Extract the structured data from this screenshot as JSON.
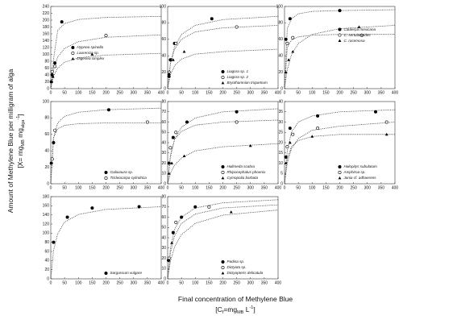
{
  "y_label": [
    [
      {
        "text": "Amount of Methylene Blue per milligram of alga"
      }
    ],
    [
      {
        "text": "[X= mg"
      },
      {
        "text": "MB",
        "script": "sub"
      },
      {
        "text": " mg"
      },
      {
        "text": "alga",
        "script": "sub"
      },
      {
        "text": "-1",
        "script": "sup"
      },
      {
        "text": "]"
      }
    ]
  ],
  "x_label": [
    [
      {
        "text": "Final concentration of Methylene Blue"
      }
    ],
    [
      {
        "text": "[C"
      },
      {
        "text": "f",
        "script": "sub"
      },
      {
        "text": "=mg"
      },
      {
        "text": "MB",
        "script": "sub"
      },
      {
        "text": " L"
      },
      {
        "text": "-1",
        "script": "sup"
      },
      {
        "text": "]"
      }
    ]
  ],
  "chart_data": [
    {
      "type": "scatter",
      "xlim": [
        0,
        400
      ],
      "xticks": [
        0,
        50,
        100,
        150,
        200,
        250,
        300,
        350,
        400
      ],
      "ylim": [
        0,
        240
      ],
      "yticks": [
        0,
        20,
        40,
        60,
        80,
        100,
        120,
        140,
        160,
        180,
        200,
        220,
        240
      ],
      "legend": "center-left",
      "fit_x": [
        0,
        10,
        25,
        50,
        100,
        200,
        400
      ],
      "series": [
        {
          "name": "Hypnea spinella",
          "marker": "circle-filled",
          "color": "#000000",
          "x": [
            2,
            5,
            15,
            40
          ],
          "values": [
            20,
            40,
            75,
            195
          ],
          "fit": [
            0,
            86,
            170,
            190,
            202,
            208,
            211
          ]
        },
        {
          "name": "Laurencia sp.",
          "marker": "circle-open",
          "color": "#000000",
          "x": [
            5,
            15,
            200
          ],
          "values": [
            50,
            65,
            155
          ],
          "fit": [
            0,
            55,
            92,
            118,
            137,
            150,
            157
          ]
        },
        {
          "name": "Digenea simplex",
          "marker": "triangle",
          "color": "#000000",
          "x": [
            3,
            8,
            150
          ],
          "values": [
            20,
            35,
            100
          ],
          "fit": [
            0,
            36,
            60,
            77,
            90,
            98,
            103
          ]
        }
      ]
    },
    {
      "type": "scatter",
      "xlim": [
        0,
        400
      ],
      "xticks": [
        0,
        50,
        100,
        150,
        200,
        250,
        300,
        350,
        400
      ],
      "ylim": [
        0,
        100
      ],
      "yticks": [
        0,
        20,
        40,
        60,
        80,
        100
      ],
      "legend": "lower-right",
      "fit_x": [
        0,
        10,
        25,
        50,
        100,
        200,
        400
      ],
      "series": [
        {
          "name": "Liagora sp. 1",
          "marker": "circle-filled",
          "color": "#000000",
          "x": [
            5,
            10,
            25,
            160
          ],
          "values": [
            15,
            35,
            55,
            85
          ],
          "fit": [
            0,
            31,
            51,
            66,
            77,
            84,
            88
          ]
        },
        {
          "name": "Liagora sp. 2",
          "marker": "circle-open",
          "color": "#000000",
          "x": [
            5,
            30,
            250
          ],
          "values": [
            20,
            55,
            75
          ],
          "fit": [
            0,
            30,
            48,
            60,
            69,
            74,
            77
          ]
        },
        {
          "name": "Bryothamnion triquetrum",
          "marker": "triangle",
          "color": "#000000",
          "x": [
            5,
            20,
            60
          ],
          "values": [
            18,
            35,
            45
          ],
          "fit": [
            0,
            17,
            28,
            36,
            42,
            45,
            48
          ]
        }
      ]
    },
    {
      "type": "scatter",
      "xlim": [
        0,
        400
      ],
      "xticks": [
        0,
        50,
        100,
        150,
        200,
        250,
        300,
        350,
        400
      ],
      "ylim": [
        0,
        100
      ],
      "yticks": [
        0,
        20,
        40,
        60,
        80,
        100
      ],
      "legend": "center-right",
      "fit_x": [
        0,
        10,
        25,
        50,
        100,
        200,
        400
      ],
      "series": [
        {
          "name": "Caulerpa mexicana",
          "marker": "circle-filled",
          "color": "#000000",
          "x": [
            5,
            20,
            200
          ],
          "values": [
            60,
            85,
            95
          ],
          "fit": [
            0,
            73,
            85,
            91,
            94,
            95,
            96
          ]
        },
        {
          "name": "C. sertularioides",
          "marker": "circle-open",
          "color": "#000000",
          "x": [
            10,
            30,
            280
          ],
          "values": [
            55,
            62,
            65
          ],
          "fit": [
            0,
            50,
            59,
            63,
            65,
            66,
            66
          ]
        },
        {
          "name": "C. racemosa",
          "marker": "triangle",
          "color": "#000000",
          "x": [
            5,
            15,
            30,
            270
          ],
          "values": [
            20,
            35,
            45,
            75
          ],
          "fit": [
            0,
            23,
            41,
            55,
            66,
            73,
            77
          ]
        }
      ]
    },
    {
      "type": "scatter",
      "xlim": [
        0,
        400
      ],
      "xticks": [
        0,
        50,
        100,
        150,
        200,
        250,
        300,
        350,
        400
      ],
      "ylim": [
        0,
        100
      ],
      "yticks": [
        0,
        20,
        40,
        60,
        80,
        100
      ],
      "legend": "lower-right",
      "fit_x": [
        0,
        10,
        25,
        50,
        100,
        200,
        400
      ],
      "series": [
        {
          "name": "Galaxaura sp.",
          "marker": "circle-filled",
          "color": "#000000",
          "x": [
            2,
            10,
            210
          ],
          "values": [
            25,
            50,
            90
          ],
          "fit": [
            0,
            56,
            74,
            82,
            87,
            90,
            92
          ]
        },
        {
          "name": "Tricleocarpa cylindrica",
          "marker": "circle-open",
          "color": "#000000",
          "x": [
            5,
            15,
            350
          ],
          "values": [
            30,
            65,
            75
          ],
          "fit": [
            0,
            56,
            67,
            71,
            73,
            74,
            74
          ]
        }
      ]
    },
    {
      "type": "scatter",
      "xlim": [
        0,
        400
      ],
      "xticks": [
        0,
        50,
        100,
        150,
        200,
        250,
        300,
        350,
        400
      ],
      "ylim": [
        0,
        80
      ],
      "yticks": [
        0,
        10,
        20,
        30,
        40,
        50,
        60,
        70,
        80
      ],
      "legend": "lower-right",
      "fit_x": [
        0,
        10,
        25,
        50,
        100,
        200,
        400
      ],
      "series": [
        {
          "name": "Halimeda scabra",
          "marker": "circle-filled",
          "color": "#000000",
          "x": [
            5,
            20,
            70,
            250
          ],
          "values": [
            20,
            45,
            60,
            70
          ],
          "fit": [
            0,
            26,
            43,
            55,
            64,
            70,
            73
          ]
        },
        {
          "name": "Rhipocephalus phoenix",
          "marker": "circle-open",
          "color": "#000000",
          "x": [
            10,
            30,
            250
          ],
          "values": [
            35,
            50,
            60
          ],
          "fit": [
            0,
            28,
            43,
            51,
            57,
            60,
            62
          ]
        },
        {
          "name": "Cymopolia barbata",
          "marker": "triangle",
          "color": "#000000",
          "x": [
            5,
            15,
            60,
            300
          ],
          "values": [
            10,
            20,
            27,
            37
          ],
          "fit": [
            0,
            10,
            18,
            25,
            32,
            36,
            39
          ]
        }
      ]
    },
    {
      "type": "scatter",
      "xlim": [
        0,
        400
      ],
      "xticks": [
        0,
        50,
        100,
        150,
        200,
        250,
        300,
        350,
        400
      ],
      "ylim": [
        0,
        40
      ],
      "yticks": [
        0,
        5,
        10,
        15,
        20,
        25,
        30,
        35,
        40
      ],
      "legend": "lower-right",
      "fit_x": [
        0,
        10,
        25,
        50,
        100,
        200,
        400
      ],
      "series": [
        {
          "name": "Halopitys subulatum",
          "marker": "circle-filled",
          "color": "#000000",
          "x": [
            5,
            20,
            120,
            330
          ],
          "values": [
            13,
            27,
            33,
            35
          ],
          "fit": [
            0,
            16,
            25,
            30,
            33,
            35,
            36
          ]
        },
        {
          "name": "Amphiroa sp.",
          "marker": "circle-open",
          "color": "#000000",
          "x": [
            10,
            30,
            120,
            370
          ],
          "values": [
            18,
            24,
            27,
            30
          ],
          "fit": [
            0,
            10,
            17,
            22,
            26,
            28,
            30
          ]
        },
        {
          "name": "Jania cf. adhaerens",
          "marker": "triangle",
          "color": "#000000",
          "x": [
            5,
            20,
            100,
            370
          ],
          "values": [
            10,
            20,
            23,
            24
          ],
          "fit": [
            0,
            12,
            18,
            21,
            23,
            24,
            24
          ]
        }
      ]
    },
    {
      "type": "scatter",
      "xlim": [
        0,
        400
      ],
      "xticks": [
        0,
        50,
        100,
        150,
        200,
        250,
        300,
        350,
        400
      ],
      "ylim": [
        0,
        180
      ],
      "yticks": [
        0,
        20,
        40,
        60,
        80,
        100,
        120,
        140,
        160,
        180
      ],
      "legend": "lower-right",
      "fit_x": [
        0,
        10,
        25,
        50,
        100,
        200,
        400
      ],
      "series": [
        {
          "name": "Sargassum vulgare",
          "marker": "circle-filled",
          "color": "#000000",
          "x": [
            10,
            60,
            150,
            320
          ],
          "values": [
            80,
            135,
            155,
            158
          ],
          "fit": [
            0,
            62,
            99,
            124,
            141,
            152,
            158
          ]
        }
      ]
    },
    {
      "type": "scatter",
      "xlim": [
        0,
        400
      ],
      "xticks": [
        0,
        50,
        100,
        150,
        200,
        250,
        300,
        350,
        400
      ],
      "ylim": [
        0,
        80
      ],
      "yticks": [
        0,
        10,
        20,
        30,
        40,
        50,
        60,
        70,
        80
      ],
      "legend": "lower-right",
      "fit_x": [
        0,
        10,
        25,
        50,
        100,
        200,
        400
      ],
      "series": [
        {
          "name": "Padina sp.",
          "marker": "circle-filled",
          "color": "#000000",
          "x": [
            3,
            20,
            50,
            100
          ],
          "values": [
            18,
            45,
            60,
            70
          ],
          "fit": [
            0,
            30,
            48,
            60,
            69,
            74,
            77
          ]
        },
        {
          "name": "Dictyota sp.",
          "marker": "circle-open",
          "color": "#000000",
          "x": [
            5,
            30,
            150
          ],
          "values": [
            20,
            55,
            70
          ],
          "fit": [
            0,
            25,
            42,
            54,
            63,
            69,
            72
          ]
        },
        {
          "name": "Dictyopteris delicatula",
          "marker": "triangle",
          "color": "#000000",
          "x": [
            5,
            15,
            230
          ],
          "values": [
            18,
            35,
            65
          ],
          "fit": [
            0,
            17,
            31,
            43,
            54,
            62,
            67
          ]
        }
      ]
    }
  ]
}
